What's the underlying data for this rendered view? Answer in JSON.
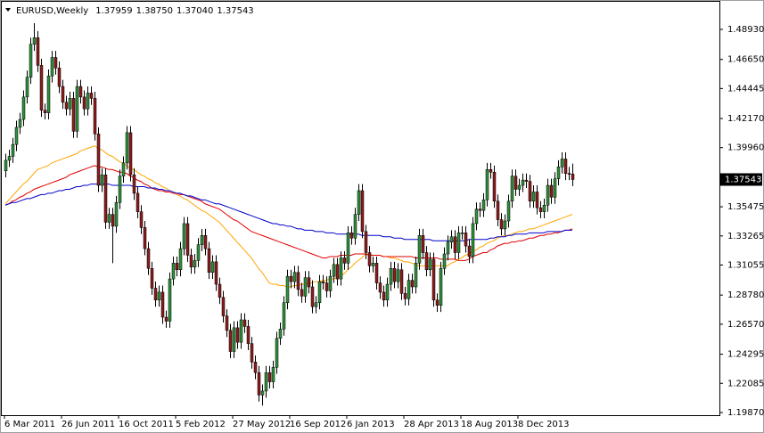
{
  "chart_data": {
    "type": "candlestick",
    "symbol": "EURUSD,Weekly",
    "header_values": [
      1.37959,
      {
        "value": 1.3875,
        "label": "1.38750"
      },
      {
        "value": 1.3704,
        "label": "1.37040"
      },
      1.37543
    ],
    "last_price": 1.37543,
    "up_color": "#2f8f3a",
    "down_color": "#8b1c1c",
    "wick_color": "#000000",
    "grid": false,
    "ylim": [
      1.1967,
      1.5082
    ],
    "yticks": [
      {
        "value": 1.4893,
        "label": "1.48930"
      },
      {
        "value": 1.4665,
        "label": "1.46650"
      },
      1.44445,
      {
        "value": 1.4217,
        "label": "1.42170"
      },
      {
        "value": 1.3996,
        "label": "1.39960"
      },
      1.35475,
      1.33265,
      1.31055,
      {
        "value": 1.2878,
        "label": "1.28780"
      },
      {
        "value": 1.2657,
        "label": "1.26570"
      },
      1.24295,
      1.22085,
      {
        "value": 1.1987,
        "label": "1.19870"
      }
    ],
    "categories": [
      "6 Mar 2011",
      null,
      null,
      null,
      null,
      null,
      null,
      null,
      null,
      null,
      null,
      null,
      null,
      null,
      null,
      null,
      "26 Jun 2011",
      null,
      null,
      null,
      null,
      null,
      null,
      null,
      null,
      null,
      null,
      null,
      null,
      null,
      null,
      null,
      "16 Oct 2011",
      null,
      null,
      null,
      null,
      null,
      null,
      null,
      null,
      null,
      null,
      null,
      null,
      null,
      null,
      null,
      "5 Feb 2012",
      null,
      null,
      null,
      null,
      null,
      null,
      null,
      null,
      null,
      null,
      null,
      null,
      null,
      null,
      null,
      "27 May 2012",
      null,
      null,
      null,
      null,
      null,
      null,
      null,
      null,
      null,
      null,
      null,
      null,
      null,
      null,
      null,
      "16 Sep 2012",
      null,
      null,
      null,
      null,
      null,
      null,
      null,
      null,
      null,
      null,
      null,
      null,
      null,
      null,
      null,
      "6 Jan 2013",
      null,
      null,
      null,
      null,
      null,
      null,
      null,
      null,
      null,
      null,
      null,
      null,
      null,
      null,
      null,
      "28 Apr 2013",
      null,
      null,
      null,
      null,
      null,
      null,
      null,
      null,
      null,
      null,
      null,
      null,
      null,
      null,
      null,
      "18 Aug 2013",
      null,
      null,
      null,
      null,
      null,
      null,
      null,
      null,
      null,
      null,
      null,
      null,
      null,
      null,
      null,
      "8 Dec 2013",
      null,
      null,
      null,
      null,
      null,
      null,
      null,
      null,
      null,
      null,
      null,
      null,
      null,
      null,
      null
    ],
    "open": [
      1.382,
      1.39,
      1.393,
      1.402,
      1.415,
      1.421,
      1.438,
      1.453,
      1.478,
      1.483,
      1.462,
      1.428,
      1.426,
      1.454,
      1.468,
      1.46,
      1.446,
      1.434,
      1.429,
      1.437,
      1.412,
      1.446,
      1.438,
      1.429,
      1.441,
      1.437,
      1.41,
      1.371,
      1.379,
      1.343,
      1.349,
      1.34,
      1.358,
      1.378,
      1.388,
      1.411,
      1.379,
      1.365,
      1.351,
      1.339,
      1.323,
      1.308,
      1.293,
      1.284,
      1.29,
      1.271,
      1.268,
      1.3,
      1.312,
      1.307,
      1.323,
      1.342,
      1.318,
      1.309,
      1.314,
      1.326,
      1.333,
      1.323,
      1.305,
      1.313,
      1.296,
      1.286,
      1.272,
      1.261,
      1.245,
      1.263,
      1.252,
      1.269,
      1.264,
      1.251,
      1.237,
      1.229,
      1.212,
      1.215,
      1.229,
      1.222,
      1.233,
      1.255,
      1.262,
      1.282,
      1.302,
      1.298,
      1.305,
      1.292,
      1.287,
      1.301,
      1.294,
      1.279,
      1.282,
      1.298,
      1.297,
      1.291,
      1.302,
      1.311,
      1.3,
      1.316,
      1.312,
      1.335,
      1.331,
      1.349,
      1.367,
      1.336,
      1.32,
      1.31,
      1.312,
      1.297,
      1.29,
      1.284,
      1.296,
      1.308,
      1.298,
      1.307,
      1.289,
      1.285,
      1.299,
      1.294,
      1.312,
      1.333,
      1.32,
      1.307,
      1.315,
      1.284,
      1.28,
      1.308,
      1.319,
      1.328,
      1.332,
      1.32,
      1.335,
      1.335,
      1.325,
      1.317,
      1.342,
      1.353,
      1.352,
      1.36,
      1.383,
      1.381,
      1.359,
      1.345,
      1.338,
      1.344,
      1.359,
      1.378,
      1.368,
      1.371,
      1.375,
      1.374,
      1.359,
      1.366,
      1.354,
      1.351,
      1.356,
      1.371,
      1.362,
      1.376,
      1.385,
      1.391,
      1.38,
      1.37959
    ],
    "high": [
      1.395,
      1.398,
      1.407,
      1.42,
      1.426,
      1.443,
      1.458,
      1.483,
      1.494,
      1.488,
      1.467,
      1.433,
      1.459,
      1.473,
      1.473,
      1.465,
      1.451,
      1.439,
      1.442,
      1.442,
      1.451,
      1.451,
      1.443,
      1.446,
      1.446,
      1.442,
      1.415,
      1.384,
      1.384,
      1.354,
      1.354,
      1.363,
      1.383,
      1.393,
      1.416,
      1.416,
      1.384,
      1.37,
      1.356,
      1.344,
      1.328,
      1.313,
      1.298,
      1.295,
      1.295,
      1.276,
      1.305,
      1.317,
      1.317,
      1.328,
      1.347,
      1.347,
      1.323,
      1.319,
      1.331,
      1.338,
      1.338,
      1.328,
      1.318,
      1.318,
      1.301,
      1.291,
      1.277,
      1.266,
      1.268,
      1.268,
      1.274,
      1.274,
      1.269,
      1.256,
      1.242,
      1.234,
      1.22,
      1.234,
      1.234,
      1.238,
      1.26,
      1.267,
      1.287,
      1.307,
      1.307,
      1.31,
      1.31,
      1.297,
      1.306,
      1.306,
      1.299,
      1.287,
      1.303,
      1.303,
      1.302,
      1.307,
      1.316,
      1.316,
      1.321,
      1.321,
      1.34,
      1.34,
      1.354,
      1.372,
      1.372,
      1.341,
      1.325,
      1.317,
      1.317,
      1.302,
      1.295,
      1.301,
      1.313,
      1.313,
      1.312,
      1.312,
      1.294,
      1.304,
      1.304,
      1.317,
      1.338,
      1.338,
      1.325,
      1.32,
      1.32,
      1.289,
      1.313,
      1.324,
      1.333,
      1.337,
      1.337,
      1.34,
      1.34,
      1.34,
      1.33,
      1.347,
      1.358,
      1.358,
      1.365,
      1.388,
      1.388,
      1.386,
      1.364,
      1.35,
      1.349,
      1.364,
      1.383,
      1.383,
      1.376,
      1.38,
      1.38,
      1.379,
      1.371,
      1.371,
      1.359,
      1.361,
      1.376,
      1.376,
      1.381,
      1.39,
      1.396,
      1.396,
      1.385,
      1.3875
    ],
    "low": [
      1.377,
      1.385,
      1.388,
      1.397,
      1.41,
      1.416,
      1.433,
      1.448,
      1.473,
      1.457,
      1.423,
      1.421,
      1.421,
      1.449,
      1.455,
      1.441,
      1.429,
      1.424,
      1.424,
      1.407,
      1.407,
      1.433,
      1.424,
      1.424,
      1.432,
      1.405,
      1.366,
      1.366,
      1.338,
      1.338,
      1.312,
      1.335,
      1.353,
      1.373,
      1.383,
      1.374,
      1.36,
      1.346,
      1.334,
      1.318,
      1.303,
      1.288,
      1.279,
      1.279,
      1.266,
      1.263,
      1.263,
      1.295,
      1.302,
      1.302,
      1.318,
      1.313,
      1.304,
      1.304,
      1.309,
      1.321,
      1.318,
      1.3,
      1.3,
      1.291,
      1.281,
      1.267,
      1.256,
      1.24,
      1.24,
      1.247,
      1.247,
      1.259,
      1.246,
      1.232,
      1.224,
      1.207,
      1.204,
      1.21,
      1.217,
      1.217,
      1.228,
      1.25,
      1.257,
      1.277,
      1.293,
      1.293,
      1.287,
      1.282,
      1.282,
      1.289,
      1.274,
      1.274,
      1.277,
      1.292,
      1.286,
      1.286,
      1.297,
      1.295,
      1.295,
      1.307,
      1.307,
      1.326,
      1.326,
      1.344,
      1.331,
      1.315,
      1.305,
      1.305,
      1.292,
      1.285,
      1.279,
      1.279,
      1.291,
      1.293,
      1.293,
      1.284,
      1.28,
      1.28,
      1.289,
      1.289,
      1.307,
      1.315,
      1.302,
      1.302,
      1.279,
      1.275,
      1.275,
      1.303,
      1.314,
      1.323,
      1.315,
      1.315,
      1.33,
      1.32,
      1.312,
      1.312,
      1.337,
      1.347,
      1.347,
      1.355,
      1.376,
      1.354,
      1.34,
      1.333,
      1.333,
      1.339,
      1.354,
      1.363,
      1.363,
      1.366,
      1.369,
      1.354,
      1.354,
      1.349,
      1.346,
      1.346,
      1.351,
      1.357,
      1.357,
      1.371,
      1.38,
      1.375,
      1.375,
      1.3704
    ],
    "close": [
      1.39,
      1.393,
      1.402,
      1.415,
      1.421,
      1.438,
      1.453,
      1.478,
      1.483,
      1.462,
      1.428,
      1.426,
      1.454,
      1.468,
      1.46,
      1.446,
      1.434,
      1.429,
      1.437,
      1.412,
      1.446,
      1.438,
      1.429,
      1.441,
      1.437,
      1.41,
      1.371,
      1.379,
      1.343,
      1.349,
      1.34,
      1.358,
      1.378,
      1.388,
      1.411,
      1.379,
      1.365,
      1.351,
      1.339,
      1.323,
      1.308,
      1.293,
      1.284,
      1.29,
      1.271,
      1.268,
      1.3,
      1.312,
      1.307,
      1.323,
      1.342,
      1.318,
      1.309,
      1.314,
      1.326,
      1.333,
      1.323,
      1.305,
      1.313,
      1.296,
      1.286,
      1.272,
      1.261,
      1.245,
      1.263,
      1.252,
      1.269,
      1.264,
      1.251,
      1.237,
      1.229,
      1.212,
      1.215,
      1.229,
      1.222,
      1.233,
      1.255,
      1.262,
      1.282,
      1.302,
      1.298,
      1.305,
      1.292,
      1.287,
      1.301,
      1.294,
      1.279,
      1.282,
      1.298,
      1.297,
      1.291,
      1.302,
      1.311,
      1.3,
      1.316,
      1.312,
      1.335,
      1.331,
      1.349,
      1.367,
      1.336,
      1.32,
      1.31,
      1.312,
      1.297,
      1.29,
      1.284,
      1.296,
      1.308,
      1.298,
      1.307,
      1.289,
      1.285,
      1.299,
      1.294,
      1.312,
      1.333,
      1.32,
      1.307,
      1.315,
      1.284,
      1.28,
      1.308,
      1.319,
      1.328,
      1.332,
      1.32,
      1.335,
      1.335,
      1.325,
      1.317,
      1.342,
      1.353,
      1.352,
      1.36,
      1.383,
      1.381,
      1.359,
      1.345,
      1.338,
      1.344,
      1.359,
      1.378,
      1.368,
      1.371,
      1.375,
      1.374,
      1.359,
      1.366,
      1.354,
      1.351,
      1.356,
      1.371,
      1.362,
      1.376,
      1.385,
      1.391,
      1.38,
      1.3796,
      1.37543
    ],
    "moving_averages": [
      {
        "color": "#ffa500",
        "values": [
          1.357,
          1.36,
          1.363,
          1.366,
          1.369,
          1.372,
          1.374,
          1.377,
          1.38,
          1.383,
          1.384,
          1.385,
          1.386,
          1.388,
          1.389,
          1.39,
          1.391,
          1.392,
          1.393,
          1.394,
          1.395,
          1.397,
          1.398,
          1.399,
          1.4,
          1.401,
          1.399,
          1.398,
          1.396,
          1.394,
          1.393,
          1.391,
          1.389,
          1.388,
          1.386,
          1.384,
          1.383,
          1.381,
          1.379,
          1.378,
          1.376,
          1.375,
          1.373,
          1.372,
          1.37,
          1.369,
          1.367,
          1.366,
          1.364,
          1.363,
          1.361,
          1.36,
          1.358,
          1.356,
          1.354,
          1.352,
          1.351,
          1.349,
          1.347,
          1.345,
          1.343,
          1.34,
          1.337,
          1.334,
          1.331,
          1.328,
          1.325,
          1.322,
          1.319,
          1.316,
          1.312,
          1.308,
          1.305,
          1.301,
          1.297,
          1.296,
          1.296,
          1.295,
          1.295,
          1.294,
          1.294,
          1.295,
          1.295,
          1.296,
          1.296,
          1.297,
          1.297,
          1.298,
          1.298,
          1.299,
          1.299,
          1.3,
          1.3,
          1.301,
          1.302,
          1.304,
          1.307,
          1.309,
          1.312,
          1.314,
          1.316,
          1.319,
          1.319,
          1.318,
          1.318,
          1.318,
          1.317,
          1.317,
          1.316,
          1.316,
          1.315,
          1.314,
          1.313,
          1.313,
          1.312,
          1.311,
          1.31,
          1.31,
          1.31,
          1.31,
          1.31,
          1.31,
          1.31,
          1.31,
          1.31,
          1.312,
          1.313,
          1.315,
          1.316,
          1.318,
          1.319,
          1.321,
          1.322,
          1.324,
          1.325,
          1.327,
          1.328,
          1.329,
          1.331,
          1.332,
          1.333,
          1.333,
          1.334,
          1.335,
          1.336,
          1.336,
          1.337,
          1.338,
          1.338,
          1.339,
          1.34,
          1.341,
          1.342,
          1.343,
          1.344,
          1.345,
          1.346,
          1.347,
          1.348,
          1.349
        ]
      },
      {
        "color": "#e00000",
        "values": [
          1.356,
          1.357,
          1.359,
          1.36,
          1.362,
          1.363,
          1.365,
          1.366,
          1.368,
          1.369,
          1.37,
          1.371,
          1.372,
          1.373,
          1.374,
          1.375,
          1.376,
          1.377,
          1.379,
          1.38,
          1.381,
          1.382,
          1.383,
          1.384,
          1.385,
          1.386,
          1.385,
          1.385,
          1.384,
          1.383,
          1.383,
          1.382,
          1.381,
          1.381,
          1.38,
          1.378,
          1.377,
          1.375,
          1.374,
          1.372,
          1.371,
          1.369,
          1.368,
          1.367,
          1.367,
          1.366,
          1.366,
          1.365,
          1.365,
          1.364,
          1.364,
          1.363,
          1.362,
          1.361,
          1.36,
          1.359,
          1.357,
          1.356,
          1.355,
          1.354,
          1.353,
          1.351,
          1.349,
          1.347,
          1.345,
          1.344,
          1.342,
          1.34,
          1.338,
          1.336,
          1.335,
          1.334,
          1.333,
          1.332,
          1.331,
          1.33,
          1.329,
          1.328,
          1.327,
          1.326,
          1.325,
          1.324,
          1.323,
          1.322,
          1.321,
          1.32,
          1.319,
          1.318,
          1.317,
          1.316,
          1.316,
          1.317,
          1.317,
          1.317,
          1.318,
          1.318,
          1.318,
          1.318,
          1.319,
          1.319,
          1.319,
          1.319,
          1.318,
          1.318,
          1.318,
          1.318,
          1.317,
          1.317,
          1.317,
          1.317,
          1.317,
          1.317,
          1.317,
          1.317,
          1.317,
          1.316,
          1.316,
          1.316,
          1.316,
          1.316,
          1.316,
          1.316,
          1.315,
          1.315,
          1.315,
          1.315,
          1.315,
          1.314,
          1.314,
          1.314,
          1.315,
          1.317,
          1.318,
          1.319,
          1.32,
          1.32,
          1.322,
          1.323,
          1.325,
          1.326,
          1.327,
          1.327,
          1.328,
          1.328,
          1.329,
          1.329,
          1.33,
          1.331,
          1.331,
          1.332,
          1.333,
          1.333,
          1.334,
          1.334,
          1.335,
          1.335,
          1.336,
          1.337,
          1.337,
          1.338
        ]
      },
      {
        "color": "#0000c8",
        "values": [
          1.356,
          1.357,
          1.358,
          1.358,
          1.359,
          1.36,
          1.361,
          1.361,
          1.362,
          1.363,
          1.364,
          1.364,
          1.365,
          1.365,
          1.366,
          1.367,
          1.367,
          1.368,
          1.368,
          1.369,
          1.37,
          1.37,
          1.371,
          1.371,
          1.372,
          1.372,
          1.372,
          1.372,
          1.372,
          1.372,
          1.371,
          1.371,
          1.371,
          1.371,
          1.371,
          1.371,
          1.37,
          1.37,
          1.37,
          1.37,
          1.369,
          1.369,
          1.369,
          1.368,
          1.368,
          1.367,
          1.367,
          1.366,
          1.365,
          1.365,
          1.364,
          1.363,
          1.363,
          1.362,
          1.361,
          1.36,
          1.36,
          1.359,
          1.358,
          1.357,
          1.357,
          1.356,
          1.355,
          1.354,
          1.353,
          1.352,
          1.351,
          1.35,
          1.349,
          1.348,
          1.347,
          1.346,
          1.345,
          1.344,
          1.343,
          1.342,
          1.342,
          1.341,
          1.341,
          1.34,
          1.34,
          1.339,
          1.338,
          1.338,
          1.337,
          1.337,
          1.337,
          1.336,
          1.336,
          1.336,
          1.335,
          1.335,
          1.335,
          1.334,
          1.334,
          1.334,
          1.334,
          1.334,
          1.334,
          1.334,
          1.333,
          1.333,
          1.333,
          1.333,
          1.333,
          1.333,
          1.332,
          1.332,
          1.332,
          1.331,
          1.331,
          1.331,
          1.33,
          1.33,
          1.33,
          1.33,
          1.33,
          1.33,
          1.33,
          1.33,
          1.329,
          1.329,
          1.329,
          1.329,
          1.329,
          1.329,
          1.329,
          1.329,
          1.329,
          1.329,
          1.33,
          1.33,
          1.33,
          1.33,
          1.33,
          1.33,
          1.331,
          1.331,
          1.332,
          1.332,
          1.332,
          1.333,
          1.333,
          1.334,
          1.334,
          1.334,
          1.334,
          1.335,
          1.335,
          1.335,
          1.335,
          1.335,
          1.336,
          1.336,
          1.336,
          1.336,
          1.336,
          1.337,
          1.337,
          1.337
        ]
      }
    ]
  }
}
